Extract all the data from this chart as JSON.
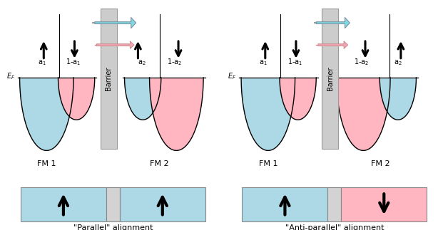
{
  "fig_width": 6.21,
  "fig_height": 3.23,
  "dpi": 100,
  "bg_color": "#ffffff",
  "light_blue": "#ADD8E6",
  "light_pink": "#FFB6C1",
  "light_gray": "#D3D3D3",
  "barrier_color": "#CCCCCC",
  "cyan_arrow": "#80D8E0",
  "pink_arrow": "#F0A8B8",
  "panel1_label": "\"Parallel\" alignment",
  "panel2_label": "\"Anti-parallel\" alignment",
  "fm1_label": "FM 1",
  "fm2_label": "FM 2",
  "barrier_label": "Barrier",
  "ef_label": "E_F"
}
